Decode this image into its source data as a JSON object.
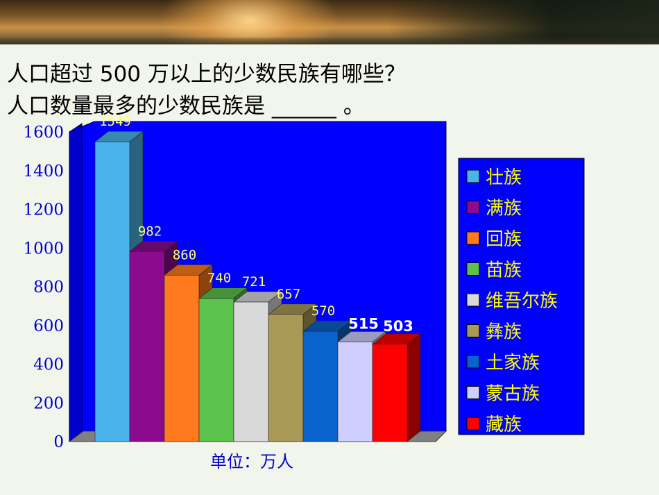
{
  "questions": {
    "q1": "人口超过 500 万以上的少数民族有哪些？",
    "q2": "人口数量最多的少数民族是 ______ 。"
  },
  "chart_data": {
    "type": "bar",
    "categories": [
      "壮族",
      "满族",
      "回族",
      "苗族",
      "维吾尔族",
      "彝族",
      "土家族",
      "蒙古族",
      "藏族"
    ],
    "values": [
      1549,
      982,
      860,
      740,
      721,
      657,
      570,
      515,
      503
    ],
    "value_labels": [
      "1549",
      "982",
      "860",
      "740",
      "721",
      "657",
      "570",
      "515",
      "503"
    ],
    "colors": [
      "#4ab4ea",
      "#8b0a8e",
      "#ff7a1c",
      "#5cc24e",
      "#d9d9d9",
      "#a89a56",
      "#0a62cc",
      "#cfcfff",
      "#ff0000"
    ],
    "ylim": [
      0,
      1600
    ],
    "yticks": [
      "0",
      "200",
      "400",
      "600",
      "800",
      "1000",
      "1200",
      "1400",
      "1600"
    ],
    "xlabel": "单位：万人",
    "ylabel": "",
    "title": "",
    "legend": "right",
    "grid": false,
    "plot_background": "#0000ff",
    "style": "3d"
  }
}
